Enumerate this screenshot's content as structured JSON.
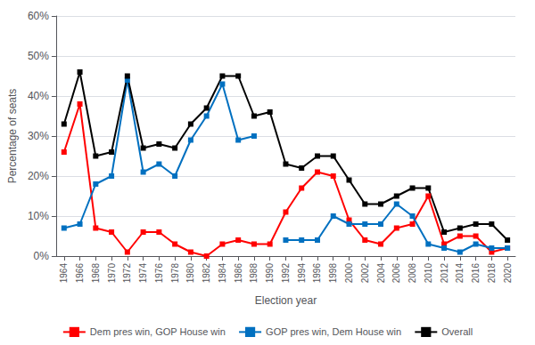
{
  "chart_data": {
    "type": "line",
    "xlabel": "Election year",
    "ylabel": "Percentage of seats",
    "x": [
      1964,
      1966,
      1968,
      1970,
      1972,
      1974,
      1976,
      1978,
      1980,
      1982,
      1984,
      1986,
      1988,
      1990,
      1992,
      1994,
      1996,
      1998,
      2000,
      2002,
      2004,
      2006,
      2008,
      2010,
      2012,
      2014,
      2016,
      2018,
      2020
    ],
    "xlim": [
      1963,
      2021
    ],
    "xticks": [
      1964,
      1966,
      1968,
      1970,
      1972,
      1974,
      1976,
      1978,
      1980,
      1982,
      1984,
      1986,
      1988,
      1990,
      1992,
      1994,
      1996,
      1998,
      2000,
      2002,
      2004,
      2006,
      2008,
      2010,
      2012,
      2014,
      2016,
      2018,
      2020
    ],
    "ylim": [
      0,
      60
    ],
    "yticks": [
      {
        "value": 0,
        "label": "0%"
      },
      {
        "value": 10,
        "label": "10%"
      },
      {
        "value": 20,
        "label": "20%"
      },
      {
        "value": 30,
        "label": "30%"
      },
      {
        "value": 40,
        "label": "40%"
      },
      {
        "value": 50,
        "label": "50%"
      },
      {
        "value": 60,
        "label": "60%"
      }
    ],
    "grid": true,
    "legend": "bottom",
    "marker": "square",
    "series": [
      {
        "name": "Dem pres win, GOP House win",
        "color": "#ff0000",
        "values": [
          26,
          38,
          7,
          6,
          1,
          6,
          6,
          3,
          1,
          0,
          3,
          4,
          3,
          3,
          11,
          17,
          21,
          20,
          9,
          4,
          3,
          7,
          8,
          15,
          3,
          5,
          5,
          1,
          2
        ]
      },
      {
        "name": "GOP pres win, Dem House win",
        "color": "#0070c0",
        "values": [
          7,
          8,
          18,
          20,
          44,
          21,
          23,
          20,
          29,
          35,
          43,
          29,
          30,
          null,
          4,
          4,
          4,
          10,
          8,
          8,
          8,
          13,
          10,
          3,
          2,
          1,
          3,
          2,
          2
        ]
      },
      {
        "name": "Overall",
        "color": "#000000",
        "values": [
          33,
          46,
          25,
          26,
          45,
          27,
          28,
          27,
          33,
          37,
          45,
          45,
          35,
          36,
          23,
          22,
          25,
          25,
          19,
          13,
          13,
          15,
          17,
          17,
          6,
          7,
          8,
          8,
          4
        ]
      }
    ]
  }
}
